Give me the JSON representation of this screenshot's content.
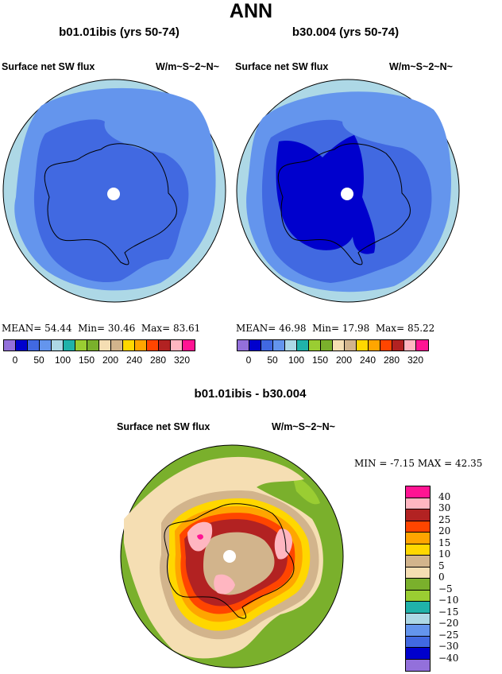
{
  "main_title": "ANN",
  "panels": [
    {
      "case": "b01.01ibis (yrs 50-74)",
      "variable": "Surface net SW flux",
      "units": "W/m~S~2~N~",
      "mean_label": "MEAN=",
      "mean": "54.44",
      "min_label": "Min=",
      "min": "30.46",
      "max_label": "Max=",
      "max": "83.61"
    },
    {
      "case": "b30.004 (yrs 50-74)",
      "variable": "Surface net SW flux",
      "units": "W/m~S~2~N~",
      "mean_label": "MEAN=",
      "mean": "46.98",
      "min_label": "Min=",
      "min": "17.98",
      "max_label": "Max=",
      "max": "85.22"
    }
  ],
  "difference": {
    "title": "b01.01ibis - b30.004",
    "variable": "Surface net SW flux",
    "units": "W/m~S~2~N~",
    "min_label": "MIN =",
    "min": "-7.15",
    "max_label": "MAX =",
    "max": "42.35"
  },
  "abs_colorbar": {
    "colors": [
      "#9370db",
      "#0000cd",
      "#4169e1",
      "#6495ed",
      "#add8e6",
      "#20b2aa",
      "#9acd32",
      "#7ab02c",
      "#f5deb3",
      "#d2b48c",
      "#ffd700",
      "#ffa500",
      "#ff4500",
      "#b22222",
      "#ffb6c1",
      "#ff1493"
    ],
    "labels": [
      "0",
      "50",
      "100",
      "150",
      "200",
      "240",
      "280",
      "320"
    ]
  },
  "diff_colorbar": {
    "colors": [
      "#ff1493",
      "#ffb6c1",
      "#b22222",
      "#ff4500",
      "#ffa500",
      "#ffd700",
      "#d2b48c",
      "#f5deb3",
      "#7ab02c",
      "#9acd32",
      "#20b2aa",
      "#add8e6",
      "#6495ed",
      "#4169e1",
      "#0000cd",
      "#9370db"
    ],
    "labels": [
      "40",
      "30",
      "25",
      "20",
      "15",
      "10",
      "5",
      "0",
      "−5",
      "−10",
      "−15",
      "−20",
      "−25",
      "−30",
      "−40"
    ]
  },
  "map_colors": {
    "ocean_outer": "#add8e6",
    "ocean_mid": "#6495ed",
    "ice_shelf": "#4169e1",
    "ice_deep": "#0000cd",
    "pole": "#ffffff"
  }
}
